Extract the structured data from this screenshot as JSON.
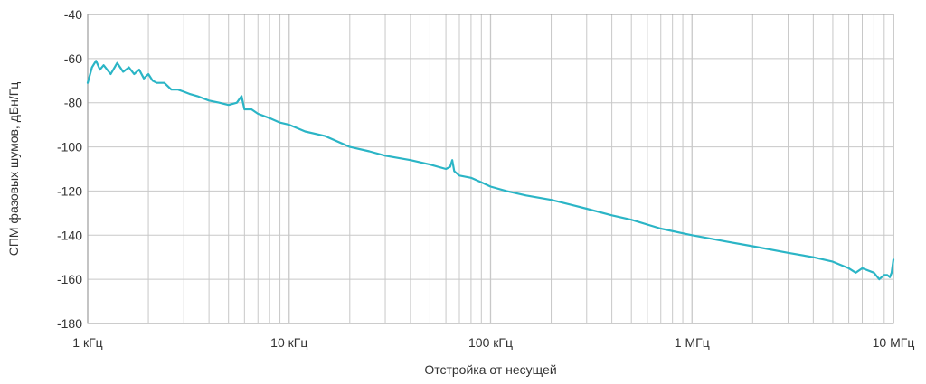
{
  "chart_data": {
    "type": "line",
    "title": "",
    "xlabel": "Отстройка от несущей",
    "ylabel": "СПМ фазовых шумов, дБн/Гц",
    "xscale": "log",
    "xlim": [
      1000,
      10000000
    ],
    "ylim": [
      -180,
      -40
    ],
    "grid": true,
    "legend": "none",
    "line_color": "#2bb5c6",
    "grid_color": "#c8c8c8",
    "x_tick_values": [
      1000,
      10000,
      100000,
      1000000,
      10000000
    ],
    "x_tick_labels": [
      "1 кГц",
      "10 кГц",
      "100 кГц",
      "1 МГц",
      "10 МГц"
    ],
    "y_tick_values": [
      -40,
      -60,
      -80,
      -100,
      -120,
      -140,
      -160,
      -180
    ],
    "y_tick_labels": [
      "-40",
      "-60",
      "-80",
      "-100",
      "-120",
      "-140",
      "-160",
      "-180"
    ],
    "series": [
      {
        "x": [
          1000,
          1050,
          1100,
          1150,
          1200,
          1300,
          1400,
          1500,
          1600,
          1700,
          1800,
          1900,
          2000,
          2100,
          2200,
          2400,
          2600,
          2800,
          3000,
          3200,
          3500,
          4000,
          4500,
          5000,
          5500,
          5800,
          6000,
          6500,
          7000,
          8000,
          9000,
          10000,
          12000,
          15000,
          20000,
          25000,
          30000,
          40000,
          50000,
          60000,
          63000,
          64500,
          66000,
          70000,
          80000,
          90000,
          100000,
          120000,
          150000,
          200000,
          300000,
          400000,
          500000,
          700000,
          1000000,
          1500000,
          2000000,
          3000000,
          4000000,
          5000000,
          6000000,
          6500000,
          7000000,
          8000000,
          8500000,
          9000000,
          9300000,
          9600000,
          9800000,
          10000000
        ],
        "y": [
          -71,
          -64,
          -61,
          -65,
          -63,
          -67,
          -62,
          -66,
          -64,
          -67,
          -65,
          -69,
          -67,
          -70,
          -71,
          -71,
          -74,
          -74,
          -75,
          -76,
          -77,
          -79,
          -80,
          -81,
          -80,
          -77,
          -83,
          -83,
          -85,
          -87,
          -89,
          -90,
          -93,
          -95,
          -100,
          -102,
          -104,
          -106,
          -108,
          -110,
          -109,
          -106,
          -111,
          -113,
          -114,
          -116,
          -118,
          -120,
          -122,
          -124,
          -128,
          -131,
          -133,
          -137,
          -140,
          -143,
          -145,
          -148,
          -150,
          -152,
          -155,
          -157,
          -155,
          -157,
          -160,
          -158,
          -158,
          -159,
          -157,
          -151
        ]
      }
    ]
  }
}
